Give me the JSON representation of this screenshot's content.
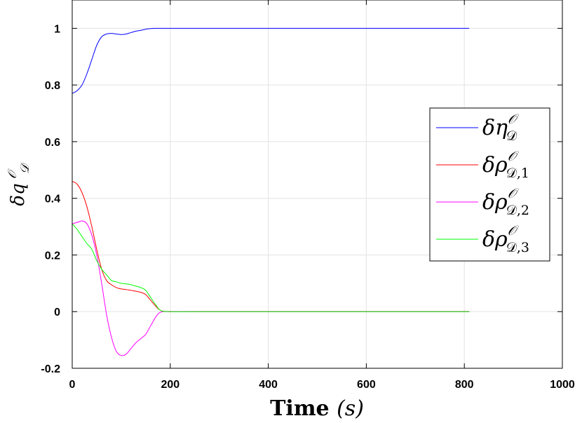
{
  "chart_data": {
    "type": "line",
    "xlabel": "Time (s)",
    "ylabel": "δq_D^O",
    "xlim": [
      0,
      1000
    ],
    "ylim": [
      -0.2,
      1.1
    ],
    "xticks": [
      0,
      200,
      400,
      600,
      800,
      1000
    ],
    "yticks": [
      -0.2,
      0,
      0.2,
      0.4,
      0.6,
      0.8,
      1
    ],
    "xtick_labels": [
      "0",
      "200",
      "400",
      "600",
      "800",
      "1000"
    ],
    "ytick_labels": [
      "-0.2",
      "0",
      "0.2",
      "0.4",
      "0.6",
      "0.8",
      "1"
    ],
    "grid": true,
    "legend_position": "right",
    "series": [
      {
        "name": "δη_D^O",
        "color": "#0000ff",
        "x": [
          0,
          10,
          20,
          30,
          40,
          50,
          60,
          70,
          80,
          90,
          100,
          110,
          120,
          130,
          140,
          150,
          160,
          170,
          180,
          200,
          300,
          400,
          500,
          600,
          700,
          810
        ],
        "y": [
          0.77,
          0.78,
          0.8,
          0.84,
          0.89,
          0.94,
          0.97,
          0.98,
          0.982,
          0.98,
          0.978,
          0.98,
          0.985,
          0.99,
          0.993,
          0.997,
          0.999,
          1.0,
          1.0,
          1.0,
          1.0,
          1.0,
          1.0,
          1.0,
          1.0,
          1.0
        ]
      },
      {
        "name": "δρ_D,1^O",
        "color": "#ff0000",
        "x": [
          0,
          10,
          20,
          30,
          40,
          50,
          60,
          70,
          80,
          90,
          100,
          110,
          120,
          130,
          140,
          150,
          160,
          170,
          180,
          200,
          300,
          400,
          500,
          600,
          700,
          810
        ],
        "y": [
          0.46,
          0.45,
          0.42,
          0.37,
          0.3,
          0.22,
          0.15,
          0.11,
          0.095,
          0.085,
          0.08,
          0.078,
          0.075,
          0.072,
          0.068,
          0.06,
          0.04,
          0.02,
          0.005,
          0.0,
          0.0,
          0.0,
          0.0,
          0.0,
          0.0,
          0.0
        ]
      },
      {
        "name": "δρ_D,2^O",
        "color": "#ff00ff",
        "x": [
          0,
          10,
          20,
          30,
          40,
          50,
          60,
          70,
          80,
          90,
          100,
          110,
          120,
          130,
          140,
          150,
          160,
          170,
          180,
          200,
          300,
          400,
          500,
          600,
          700,
          810
        ],
        "y": [
          0.31,
          0.315,
          0.32,
          0.31,
          0.27,
          0.2,
          0.1,
          -0.01,
          -0.09,
          -0.14,
          -0.155,
          -0.15,
          -0.13,
          -0.11,
          -0.095,
          -0.08,
          -0.05,
          -0.02,
          -0.002,
          0.0,
          0.0,
          0.0,
          0.0,
          0.0,
          0.0,
          0.0
        ]
      },
      {
        "name": "δρ_D,3^O",
        "color": "#00ff00",
        "x": [
          0,
          10,
          20,
          30,
          40,
          50,
          60,
          70,
          80,
          90,
          100,
          110,
          120,
          130,
          140,
          150,
          160,
          170,
          180,
          200,
          300,
          400,
          500,
          600,
          700,
          810
        ],
        "y": [
          0.31,
          0.29,
          0.265,
          0.24,
          0.22,
          0.18,
          0.15,
          0.13,
          0.11,
          0.105,
          0.1,
          0.098,
          0.095,
          0.09,
          0.085,
          0.075,
          0.05,
          0.025,
          0.005,
          0.0,
          0.0,
          0.0,
          0.0,
          0.0,
          0.0,
          0.0
        ]
      }
    ]
  }
}
